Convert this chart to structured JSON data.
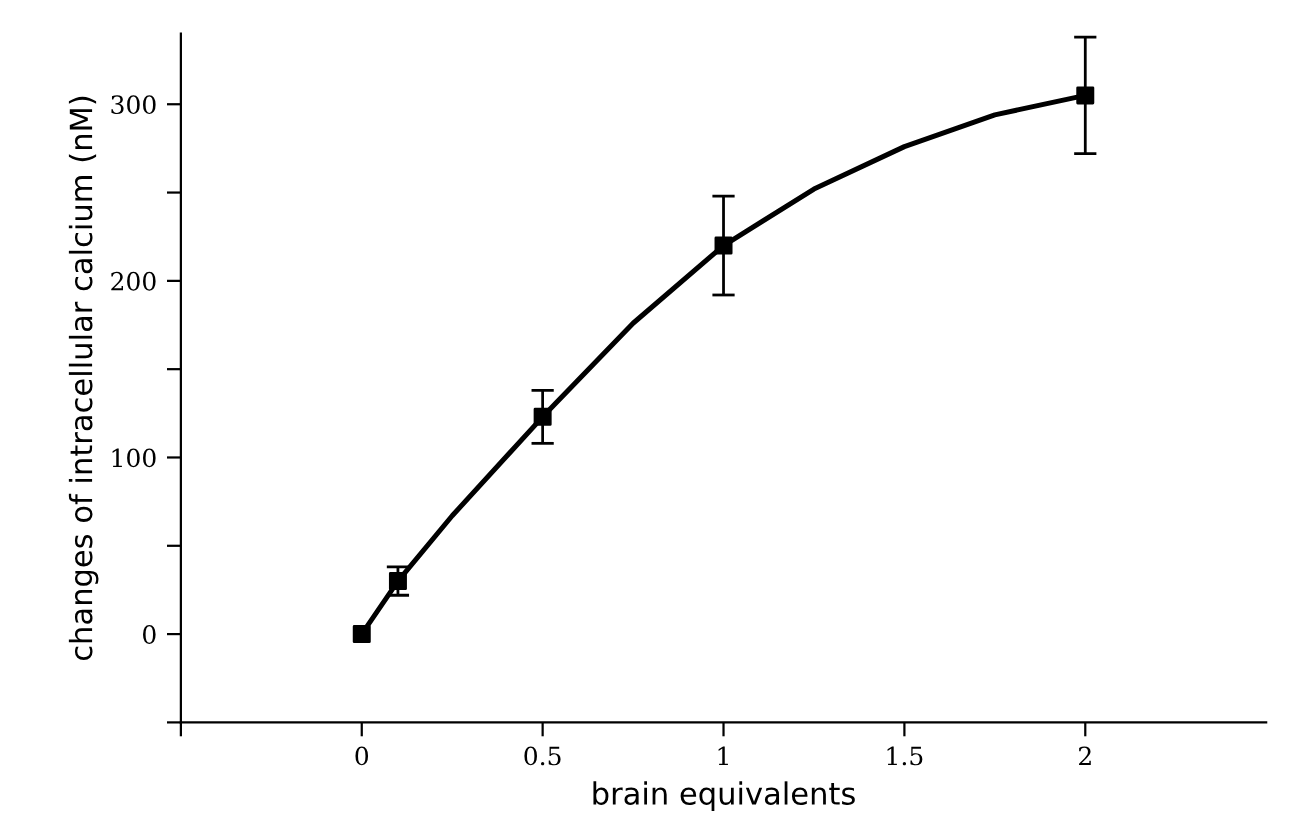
{
  "chart_data": {
    "type": "scatter",
    "xlabel": "brain equivalents",
    "ylabel": "changes of intracellular calcium (nM)",
    "xlim": [
      -0.5,
      2.5
    ],
    "xticks": [
      {
        "value": -0.5,
        "label": null
      },
      0,
      0.5,
      1,
      1.5,
      2
    ],
    "ylim": [
      -50,
      340
    ],
    "yticks": [
      {
        "value": -50,
        "label": null
      },
      0,
      {
        "value": 50,
        "label": null
      },
      100,
      {
        "value": 150,
        "label": null
      },
      200,
      {
        "value": 250,
        "label": null
      },
      300
    ],
    "grid": false,
    "legend": false,
    "series": [
      {
        "color": "#000000",
        "marker": "square",
        "x": [
          0,
          0.1,
          0.5,
          1,
          2
        ],
        "values": [
          0,
          30,
          123,
          220,
          305
        ],
        "errors": [
          null,
          8,
          15,
          28,
          33
        ]
      },
      {
        "type": "line",
        "color": "#000000",
        "marker": "none",
        "line_style": "solid",
        "x": [
          0,
          0.1,
          0.25,
          0.5,
          0.75,
          1,
          1.25,
          1.5,
          1.75,
          2
        ],
        "values": [
          0,
          30,
          67,
          123,
          176,
          220,
          252,
          276,
          294,
          305
        ]
      }
    ]
  }
}
